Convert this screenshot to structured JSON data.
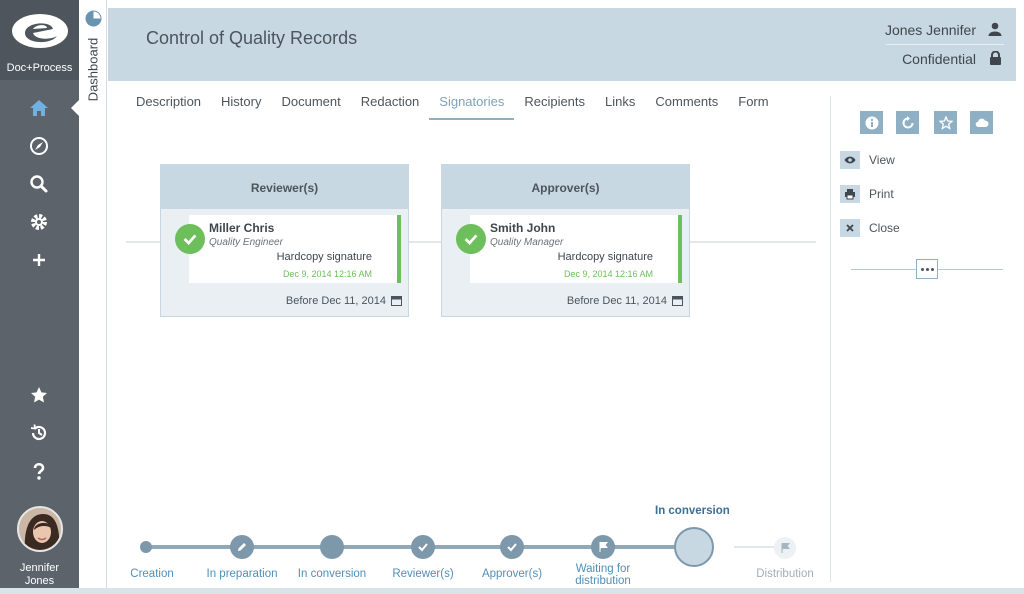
{
  "app": {
    "logo_text": "Doc+Process"
  },
  "sidebar": {
    "icons": [
      "home-icon",
      "compass-icon",
      "search-icon",
      "gear-icon",
      "plus-icon",
      "star-icon",
      "history-icon",
      "help-icon"
    ],
    "user_first": "Jennifer",
    "user_last": "Jones"
  },
  "dashboard_tab": {
    "label": "Dashboard"
  },
  "header": {
    "title": "Control of Quality Records",
    "user": "Jones Jennifer",
    "classification": "Confidential"
  },
  "tabs": [
    {
      "label": "Description"
    },
    {
      "label": "History"
    },
    {
      "label": "Document"
    },
    {
      "label": "Redaction"
    },
    {
      "label": "Signatories",
      "active": true
    },
    {
      "label": "Recipients"
    },
    {
      "label": "Links"
    },
    {
      "label": "Comments"
    },
    {
      "label": "Form"
    }
  ],
  "signatories": [
    {
      "role_title": "Reviewer(s)",
      "name": "Miller Chris",
      "job": "Quality Engineer",
      "signature_type": "Hardcopy signature",
      "signed_at": "Dec 9, 2014 12:16 AM",
      "deadline": "Before Dec 11, 2014"
    },
    {
      "role_title": "Approver(s)",
      "name": "Smith John",
      "job": "Quality Manager",
      "signature_type": "Hardcopy signature",
      "signed_at": "Dec 9, 2014 12:16 AM",
      "deadline": "Before Dec 11, 2014"
    }
  ],
  "right_panel": {
    "actions": [
      {
        "label": "View",
        "icon": "eye-icon"
      },
      {
        "label": "Print",
        "icon": "printer-icon"
      },
      {
        "label": "Close",
        "icon": "close-icon"
      }
    ],
    "tool_icons": [
      "info-icon",
      "refresh-icon",
      "star-icon",
      "cloud-icon"
    ]
  },
  "workflow": {
    "current_label": "In conversion",
    "steps": [
      {
        "label": "Creation",
        "state": "done"
      },
      {
        "label": "In preparation",
        "state": "done"
      },
      {
        "label": "In conversion",
        "state": "done"
      },
      {
        "label": "Reviewer(s)",
        "state": "done"
      },
      {
        "label": "Approver(s)",
        "state": "done"
      },
      {
        "label": "Waiting for distribution",
        "state": "done"
      },
      {
        "label": "",
        "state": "current"
      },
      {
        "label": "Distribution",
        "state": "pending"
      }
    ]
  },
  "colors": {
    "accent": "#8fb0c4",
    "header_bg": "#c7d8e2",
    "signed": "#6cbf5b",
    "sidebar": "#5c636b"
  }
}
